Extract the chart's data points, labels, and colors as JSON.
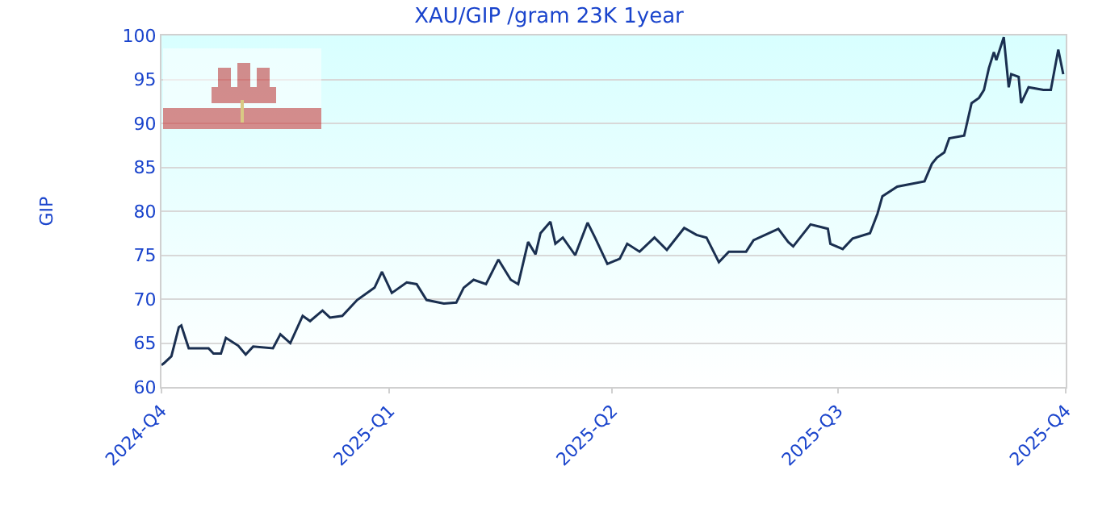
{
  "chart_data": {
    "type": "line",
    "title": "XAU/GIP /gram 23K 1year",
    "ylabel": "GIP",
    "x": [
      "2024-10-01",
      "2024-10-02",
      "2024-10-05",
      "2024-10-08",
      "2024-10-09",
      "2024-10-12",
      "2024-10-20",
      "2024-10-22",
      "2024-10-25",
      "2024-10-27",
      "2024-11-01",
      "2024-11-04",
      "2024-11-07",
      "2024-11-15",
      "2024-11-18",
      "2024-11-22",
      "2024-11-27",
      "2024-11-30",
      "2024-12-05",
      "2024-12-08",
      "2024-12-13",
      "2024-12-19",
      "2024-12-26",
      "2024-12-29",
      "2025-01-02",
      "2025-01-08",
      "2025-01-12",
      "2025-01-16",
      "2025-01-23",
      "2025-01-28",
      "2025-01-31",
      "2025-02-04",
      "2025-02-09",
      "2025-02-14",
      "2025-02-19",
      "2025-02-22",
      "2025-02-26",
      "2025-03-01",
      "2025-03-03",
      "2025-03-07",
      "2025-03-09",
      "2025-03-12",
      "2025-03-17",
      "2025-03-22",
      "2025-03-25",
      "2025-03-30",
      "2025-04-04",
      "2025-04-07",
      "2025-04-12",
      "2025-04-18",
      "2025-04-23",
      "2025-04-30",
      "2025-05-05",
      "2025-05-09",
      "2025-05-14",
      "2025-05-18",
      "2025-05-25",
      "2025-05-28",
      "2025-06-07",
      "2025-06-11",
      "2025-06-13",
      "2025-06-20",
      "2025-06-27",
      "2025-06-28",
      "2025-07-03",
      "2025-07-07",
      "2025-07-14",
      "2025-07-17",
      "2025-07-19",
      "2025-07-25",
      "2025-08-05",
      "2025-08-08",
      "2025-08-10",
      "2025-08-13",
      "2025-08-15",
      "2025-08-21",
      "2025-08-24",
      "2025-08-27",
      "2025-08-29",
      "2025-08-31",
      "2025-09-02",
      "2025-09-03",
      "2025-09-06",
      "2025-09-08",
      "2025-09-09",
      "2025-09-12",
      "2025-09-13",
      "2025-09-16",
      "2025-09-22",
      "2025-09-25",
      "2025-09-28",
      "2025-09-30"
    ],
    "series": [
      {
        "color": "#1a2f50",
        "values": [
          62.5,
          62.7,
          63.5,
          66.8,
          67,
          64.4,
          64.4,
          63.8,
          63.8,
          65.6,
          64.7,
          63.7,
          64.6,
          64.4,
          66,
          65,
          68.1,
          67.5,
          68.7,
          67.9,
          68.1,
          69.9,
          71.3,
          73.1,
          70.7,
          71.9,
          71.7,
          69.9,
          69.5,
          69.6,
          71.3,
          72.2,
          71.7,
          74.5,
          72.2,
          71.7,
          76.5,
          75.1,
          77.5,
          78.8,
          76.3,
          77,
          75,
          78.7,
          77,
          74,
          74.6,
          76.3,
          75.4,
          77,
          75.6,
          78.1,
          77.3,
          77,
          74.2,
          75.4,
          75.4,
          76.7,
          78,
          76.5,
          76,
          78.5,
          78,
          76.3,
          75.7,
          76.9,
          77.5,
          79.7,
          81.7,
          82.8,
          83.4,
          85.4,
          86.1,
          86.7,
          88.3,
          88.6,
          92.3,
          92.9,
          93.8,
          96.3,
          98.1,
          97.2,
          99.8,
          94.1,
          95.6,
          95.3,
          92.3,
          94.1,
          93.8,
          93.8,
          98.4,
          95.6
        ]
      }
    ],
    "xlim": [
      "2024-10-01",
      "2025-10-01"
    ],
    "xticks": [
      {
        "value": "2024-10-01",
        "label": "2024-Q4"
      },
      {
        "value": "2025-01-01",
        "label": "2025-Q1"
      },
      {
        "value": "2025-04-01",
        "label": "2025-Q2"
      },
      {
        "value": "2025-07-01",
        "label": "2025-Q3"
      },
      {
        "value": "2025-10-01",
        "label": "2025-Q4"
      }
    ],
    "ylim": [
      60,
      100
    ],
    "yticks": [
      60,
      65,
      70,
      75,
      80,
      85,
      90,
      95,
      100
    ],
    "grid": "y",
    "legend": false,
    "marker": "none",
    "line_style": "solid"
  }
}
